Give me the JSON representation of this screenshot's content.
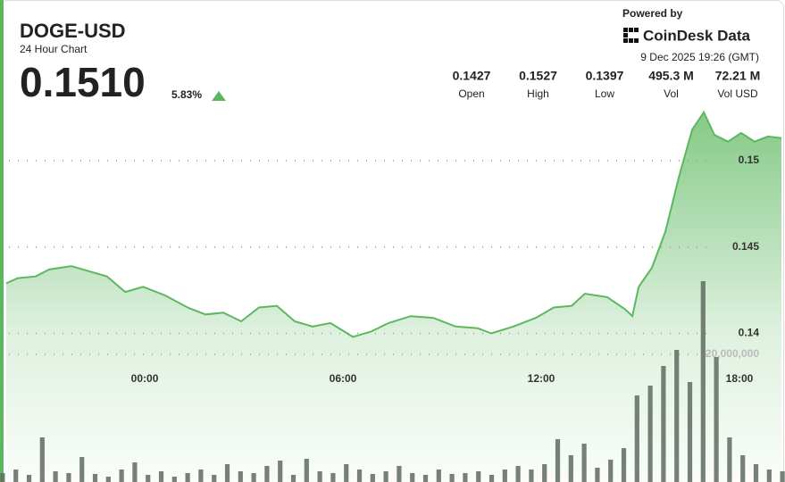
{
  "header": {
    "powered_by": "Powered by",
    "brand": "CoinDesk Data",
    "timestamp": "9 Dec 2025 19:26 (GMT)",
    "last_price": "0.1510",
    "change": "5.83%",
    "stats": [
      {
        "value": "0.1427",
        "label": "Open"
      },
      {
        "value": "0.1527",
        "label": "High"
      },
      {
        "value": "0.1397",
        "label": "Low"
      },
      {
        "value": "495.3 M",
        "label": "Vol"
      },
      {
        "value": "72.21 M",
        "label": "Vol USD"
      }
    ]
  },
  "chart_data": {
    "type": "area",
    "title": "DOGE-USD",
    "subtitle": "24 Hour Chart",
    "xlim": [
      -4.19,
      19.27
    ],
    "xticks": [
      {
        "value": 0,
        "label": "00:00"
      },
      {
        "value": 6,
        "label": "06:00"
      },
      {
        "value": 12,
        "label": "12:00"
      },
      {
        "value": 18,
        "label": "18:00"
      }
    ],
    "ylim": [
      0.1314,
      0.1531
    ],
    "yticks": [
      0.14,
      0.145,
      0.15
    ],
    "y2lim": [
      0,
      58740000
    ],
    "y2ticks": [
      {
        "value": 20000000,
        "label": "20,000,000"
      }
    ],
    "grid": true,
    "series": [
      {
        "color": "#5cb85f",
        "x": [
          -4.19,
          -3.84,
          -3.3,
          -2.89,
          -2.22,
          -1.68,
          -1.14,
          -0.59,
          -0.05,
          0.62,
          1.3,
          1.84,
          2.38,
          2.92,
          3.46,
          4,
          4.54,
          5.08,
          5.62,
          6.3,
          6.84,
          7.38,
          8.05,
          8.73,
          9.41,
          10.08,
          10.49,
          11.16,
          11.84,
          12.38,
          12.92,
          13.32,
          14,
          14.54,
          14.76,
          14.95,
          15.35,
          15.76,
          16.16,
          16.57,
          16.92,
          17.24,
          17.65,
          18.05,
          18.46,
          18.86,
          19.27
        ],
        "values": [
          0.1429,
          0.1432,
          0.1433,
          0.1437,
          0.1439,
          0.1436,
          0.1433,
          0.1424,
          0.1427,
          0.1422,
          0.1415,
          0.1411,
          0.1412,
          0.1407,
          0.1415,
          0.1416,
          0.1407,
          0.1404,
          0.1406,
          0.1398,
          0.1401,
          0.1406,
          0.141,
          0.1409,
          0.1404,
          0.1403,
          0.14,
          0.1404,
          0.1409,
          0.1415,
          0.1416,
          0.1423,
          0.1421,
          0.1414,
          0.141,
          0.1427,
          0.1438,
          0.1459,
          0.149,
          0.1518,
          0.1528,
          0.1515,
          0.1511,
          0.1516,
          0.1511,
          0.1514,
          0.1513
        ]
      },
      {
        "type": "bar",
        "axis": "y2",
        "color": "#5f6b5f",
        "x": [
          -4.3,
          -3.9,
          -3.5,
          -3.1,
          -2.7,
          -2.3,
          -1.9,
          -1.5,
          -1.1,
          -0.7,
          -0.3,
          0.1,
          0.5,
          0.9,
          1.3,
          1.7,
          2.1,
          2.5,
          2.9,
          3.3,
          3.7,
          4.1,
          4.5,
          4.9,
          5.3,
          5.7,
          6.1,
          6.5,
          6.9,
          7.3,
          7.7,
          8.1,
          8.5,
          8.9,
          9.3,
          9.7,
          10.1,
          10.5,
          10.9,
          11.3,
          11.7,
          12.1,
          12.5,
          12.9,
          13.3,
          13.7,
          14.1,
          14.5,
          14.9,
          15.3,
          15.7,
          16.1,
          16.5,
          16.9,
          17.3,
          17.7,
          18.1,
          18.5,
          18.9,
          19.3
        ],
        "values": [
          1400000,
          1960000,
          1120000,
          6990000,
          1680000,
          1400000,
          3920000,
          1260000,
          840000,
          1960000,
          3080000,
          1120000,
          1680000,
          840000,
          1400000,
          1960000,
          1120000,
          2800000,
          1680000,
          1400000,
          2520000,
          3360000,
          1120000,
          3640000,
          1680000,
          1400000,
          2800000,
          1960000,
          1260000,
          1680000,
          2520000,
          1400000,
          1120000,
          1960000,
          1260000,
          1400000,
          1680000,
          1120000,
          1960000,
          2520000,
          1960000,
          2800000,
          6710000,
          4200000,
          6010000,
          2240000,
          3500000,
          5310000,
          13570000,
          15100000,
          18180000,
          20700000,
          15660000,
          31470000,
          19580000,
          6990000,
          4200000,
          2800000,
          1960000,
          1680000
        ]
      }
    ]
  }
}
